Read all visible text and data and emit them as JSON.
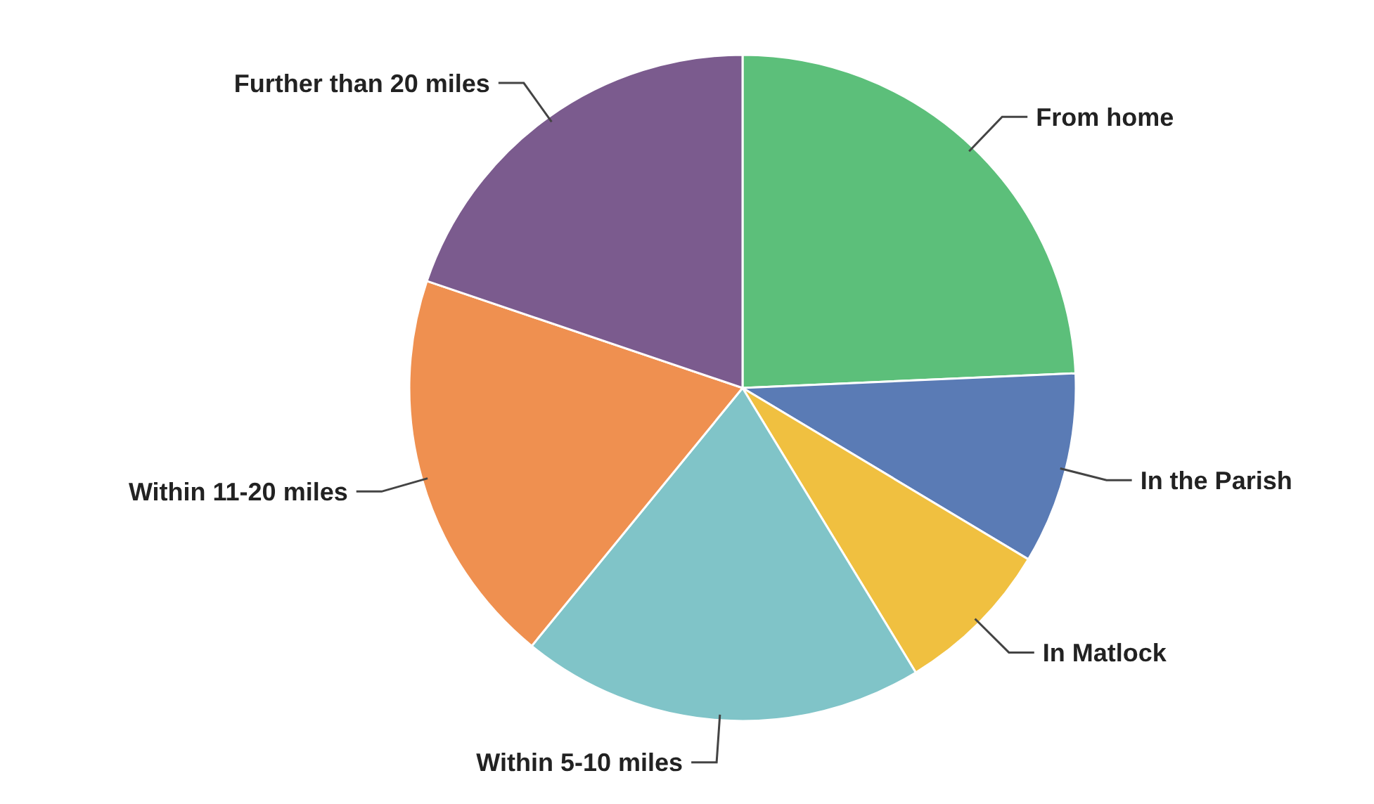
{
  "chart_data": {
    "type": "pie",
    "categories": [
      "From home",
      "In the Parish",
      "In Matlock",
      "Within 5-10 miles",
      "Within 11-20 miles",
      "Further than 20 miles"
    ],
    "values": [
      24.3,
      9.3,
      7.7,
      19.6,
      19.3,
      19.8
    ],
    "colors": [
      "#5cbf7a",
      "#5a7bb5",
      "#f0c040",
      "#80c4c8",
      "#ef9050",
      "#7b5b8e"
    ]
  }
}
